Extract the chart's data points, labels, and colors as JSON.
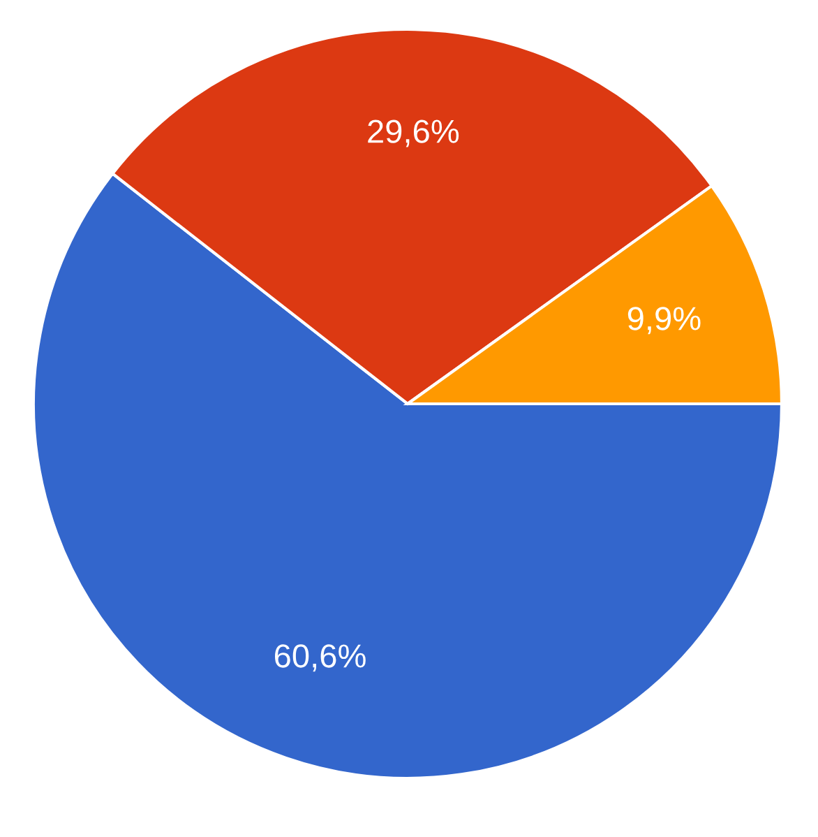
{
  "chart_data": {
    "type": "pie",
    "categories": [
      null,
      null,
      null
    ],
    "values": [
      60.6,
      29.6,
      9.9
    ],
    "colors": [
      "#3366cc",
      "#dc3912",
      "#ff9900"
    ],
    "value_labels": [
      "60,6%",
      "29,6%",
      "9,9%"
    ]
  }
}
